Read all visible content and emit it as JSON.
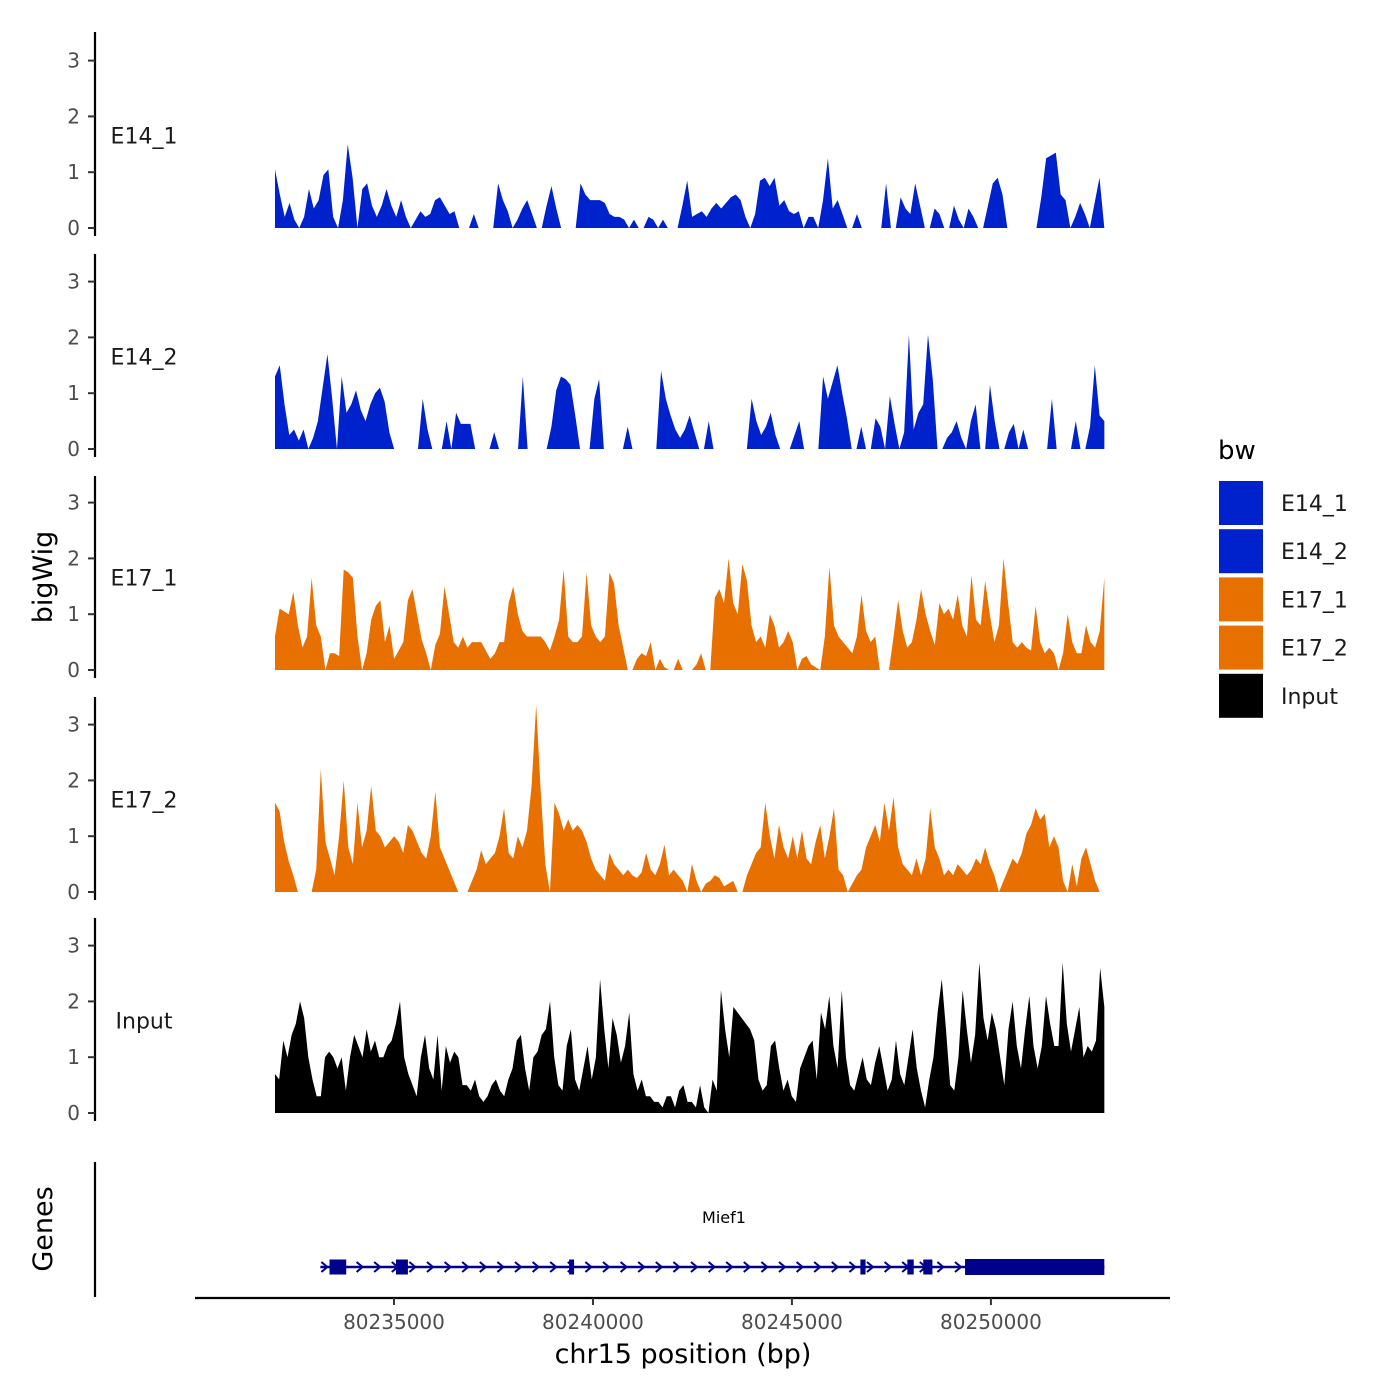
{
  "chart_data": {
    "type": "area",
    "title": "",
    "ylabel": "bigWig",
    "genes_label": "Genes",
    "xlabel": "chr15 position (bp)",
    "xlim": [
      80230000,
      80254500
    ],
    "data_range": [
      80232010,
      80252850
    ],
    "ylim": [
      0,
      3.5
    ],
    "yticks": [
      "0",
      "1",
      "2",
      "3"
    ],
    "xticks": [
      {
        "value": 80235000,
        "label": "80235000"
      },
      {
        "value": 80240000,
        "label": "80240000"
      },
      {
        "value": 80245000,
        "label": "80245000"
      },
      {
        "value": 80250000,
        "label": "80250000"
      }
    ],
    "colors": {
      "E14_1": "#0022cc",
      "E14_2": "#0022cc",
      "E17_1": "#e87000",
      "E17_2": "#e87000",
      "Input": "#000000",
      "gene": "#00008b"
    },
    "legend": {
      "title": "bw",
      "position": "right",
      "entries": [
        "E14_1",
        "E14_2",
        "E17_1",
        "E17_2",
        "Input"
      ]
    },
    "series": [
      {
        "name": "E14_1",
        "label": "E14_1",
        "values": [
          1.05,
          0.6,
          0.2,
          0.45,
          0.15,
          0.0,
          0.2,
          0.7,
          0.35,
          0.5,
          0.95,
          1.05,
          0.2,
          0.0,
          0.5,
          1.5,
          0.9,
          0.0,
          0.7,
          0.8,
          0.4,
          0.2,
          0.4,
          0.7,
          0.4,
          0.2,
          0.5,
          0.2,
          0.0,
          0.15,
          0.3,
          0.2,
          0.25,
          0.5,
          0.55,
          0.4,
          0.25,
          0.3,
          0.0,
          0.0,
          0.0,
          0.25,
          0.0,
          0.0,
          0.0,
          0.0,
          0.8,
          0.5,
          0.3,
          0.0,
          0.15,
          0.35,
          0.5,
          0.25,
          0.0,
          0.0,
          0.4,
          0.75,
          0.35,
          0.0,
          0.0,
          0.0,
          0.0,
          0.8,
          0.6,
          0.5,
          0.5,
          0.5,
          0.45,
          0.25,
          0.2,
          0.2,
          0.15,
          0.0,
          0.15,
          0.0,
          0.0,
          0.2,
          0.15,
          0.0,
          0.15,
          0.0,
          0.0,
          0.0,
          0.4,
          0.85,
          0.2,
          0.25,
          0.3,
          0.2,
          0.35,
          0.45,
          0.35,
          0.45,
          0.55,
          0.6,
          0.5,
          0.2,
          0.0,
          0.25,
          0.85,
          0.9,
          0.75,
          0.9,
          0.4,
          0.5,
          0.3,
          0.25,
          0.3,
          0.0,
          0.2,
          0.2,
          0.0,
          0.5,
          1.25,
          0.35,
          0.5,
          0.25,
          0.0,
          0.0,
          0.25,
          0.0,
          0.0,
          0.0,
          0.0,
          0.0,
          0.8,
          0.0,
          0.0,
          0.55,
          0.35,
          0.25,
          0.8,
          0.4,
          0.0,
          0.0,
          0.35,
          0.25,
          0.0,
          0.0,
          0.4,
          0.15,
          0.0,
          0.35,
          0.2,
          0.0,
          0.0,
          0.4,
          0.8,
          0.9,
          0.6,
          0.0,
          0.0,
          0.0,
          0.0,
          0.0,
          0.0,
          0.0,
          0.55,
          1.25,
          1.3,
          1.35,
          0.6,
          0.5,
          0.0,
          0.2,
          0.45,
          0.25,
          0.0,
          0.45,
          0.9,
          0.0
        ]
      },
      {
        "name": "E14_2",
        "label": "E14_2",
        "values": [
          1.3,
          1.5,
          0.8,
          0.25,
          0.35,
          0.15,
          0.35,
          0.0,
          0.2,
          0.5,
          1.1,
          1.7,
          0.9,
          0.0,
          1.3,
          0.65,
          0.8,
          1.05,
          0.7,
          0.5,
          0.8,
          1.0,
          1.1,
          0.85,
          0.3,
          0.0,
          0.0,
          0.0,
          0.0,
          0.0,
          0.0,
          0.9,
          0.35,
          0.0,
          0.0,
          0.0,
          0.5,
          0.0,
          0.65,
          0.45,
          0.45,
          0.45,
          0.0,
          0.0,
          0.0,
          0.0,
          0.3,
          0.0,
          0.0,
          0.0,
          0.0,
          0.0,
          1.3,
          0.0,
          0.0,
          0.0,
          0.0,
          0.0,
          0.4,
          1.05,
          1.3,
          1.25,
          1.15,
          0.6,
          0.0,
          0.0,
          0.0,
          0.9,
          1.25,
          0.0,
          0.0,
          0.0,
          0.0,
          0.0,
          0.4,
          0.0,
          0.0,
          0.0,
          0.0,
          0.0,
          0.0,
          1.4,
          0.9,
          0.6,
          0.35,
          0.2,
          0.35,
          0.6,
          0.3,
          0.0,
          0.0,
          0.5,
          0.0,
          0.0,
          0.0,
          0.0,
          0.0,
          0.0,
          0.0,
          0.0,
          0.9,
          0.5,
          0.25,
          0.4,
          0.65,
          0.25,
          0.0,
          0.0,
          0.0,
          0.25,
          0.5,
          0.0,
          0.0,
          0.0,
          0.0,
          1.3,
          0.9,
          1.2,
          1.5,
          1.0,
          0.55,
          0.0,
          0.0,
          0.4,
          0.0,
          0.0,
          0.55,
          0.4,
          0.0,
          0.95,
          0.45,
          0.0,
          0.3,
          2.05,
          0.35,
          0.65,
          0.8,
          2.05,
          1.25,
          0.0,
          0.0,
          0.2,
          0.3,
          0.5,
          0.2,
          0.0,
          0.5,
          0.8,
          0.0,
          0.0,
          1.15,
          0.5,
          0.0,
          0.0,
          0.3,
          0.45,
          0.0,
          0.35,
          0.0,
          0.0,
          0.0,
          0.0,
          0.0,
          0.9,
          0.0,
          0.0,
          0.0,
          0.0,
          0.5,
          0.0,
          0.0,
          0.4,
          1.5,
          0.6,
          0.5
        ]
      },
      {
        "name": "E17_1",
        "label": "E17_1",
        "values": [
          0.6,
          1.1,
          1.05,
          1.0,
          1.4,
          0.8,
          0.4,
          0.6,
          1.65,
          0.8,
          0.6,
          0.0,
          0.3,
          0.3,
          0.25,
          1.8,
          1.75,
          1.65,
          0.6,
          0.0,
          0.3,
          0.9,
          1.15,
          1.25,
          0.5,
          0.8,
          0.2,
          0.35,
          0.5,
          1.25,
          1.45,
          1.0,
          0.55,
          0.3,
          0.0,
          0.45,
          0.65,
          1.5,
          1.0,
          0.5,
          0.4,
          0.6,
          0.4,
          0.5,
          0.5,
          0.5,
          0.35,
          0.2,
          0.3,
          0.5,
          0.5,
          1.2,
          1.5,
          1.0,
          0.7,
          0.6,
          0.6,
          0.6,
          0.6,
          0.5,
          0.35,
          0.6,
          0.9,
          1.8,
          0.6,
          0.5,
          0.5,
          0.6,
          1.75,
          0.8,
          0.6,
          0.5,
          0.6,
          1.75,
          1.55,
          0.8,
          0.4,
          0.0,
          0.0,
          0.2,
          0.3,
          0.25,
          0.5,
          0.0,
          0.2,
          0.05,
          0.0,
          0.0,
          0.2,
          0.0,
          0.0,
          0.0,
          0.1,
          0.3,
          0.0,
          0.0,
          1.3,
          1.45,
          1.2,
          2.0,
          1.2,
          1.0,
          1.9,
          1.6,
          0.8,
          0.5,
          0.6,
          0.4,
          1.0,
          0.8,
          0.4,
          0.5,
          0.7,
          0.5,
          0.0,
          0.2,
          0.25,
          0.1,
          0.05,
          0.0,
          0.6,
          1.85,
          0.8,
          0.6,
          0.5,
          0.4,
          0.3,
          0.6,
          1.35,
          0.7,
          0.5,
          0.6,
          0.0,
          0.0,
          0.0,
          0.6,
          1.25,
          0.7,
          0.4,
          0.5,
          0.9,
          1.45,
          1.0,
          0.7,
          0.45,
          1.2,
          1.0,
          1.1,
          0.9,
          1.35,
          0.8,
          0.6,
          1.7,
          0.9,
          0.8,
          1.6,
          1.0,
          0.5,
          0.8,
          2.0,
          1.2,
          0.5,
          0.4,
          0.5,
          0.4,
          0.35,
          1.15,
          0.5,
          0.3,
          0.4,
          0.3,
          0.0,
          0.3,
          1.0,
          0.5,
          0.3,
          0.3,
          0.8,
          0.5,
          0.4,
          0.7,
          1.65
        ]
      },
      {
        "name": "E17_2",
        "label": "E17_2",
        "values": [
          1.6,
          1.45,
          0.9,
          0.55,
          0.3,
          0.0,
          0.0,
          0.0,
          0.0,
          0.4,
          2.2,
          0.9,
          0.6,
          0.3,
          1.0,
          2.0,
          0.8,
          0.5,
          1.6,
          0.8,
          1.1,
          1.9,
          1.1,
          1.0,
          0.8,
          0.9,
          1.0,
          0.9,
          0.7,
          1.2,
          1.1,
          0.9,
          0.7,
          0.6,
          1.0,
          1.8,
          0.8,
          0.6,
          0.4,
          0.2,
          0.0,
          0.0,
          0.0,
          0.2,
          0.4,
          0.75,
          0.5,
          0.6,
          0.7,
          1.0,
          1.5,
          0.7,
          0.6,
          1.0,
          0.8,
          1.1,
          1.9,
          3.35,
          1.8,
          0.5,
          0.0,
          1.6,
          1.4,
          1.1,
          1.3,
          1.1,
          1.2,
          1.1,
          0.9,
          0.6,
          0.4,
          0.3,
          0.2,
          0.7,
          0.5,
          0.4,
          0.3,
          0.4,
          0.3,
          0.25,
          0.35,
          0.7,
          0.4,
          0.3,
          0.5,
          0.85,
          0.3,
          0.4,
          0.3,
          0.2,
          0.0,
          0.5,
          0.2,
          0.0,
          0.15,
          0.2,
          0.3,
          0.25,
          0.1,
          0.15,
          0.2,
          0.0,
          0.0,
          0.3,
          0.5,
          0.7,
          0.8,
          1.6,
          1.0,
          0.6,
          1.2,
          0.8,
          0.6,
          1.0,
          0.6,
          1.1,
          0.6,
          0.5,
          0.9,
          1.2,
          0.6,
          1.0,
          1.5,
          0.4,
          0.3,
          0.0,
          0.15,
          0.3,
          0.4,
          0.8,
          1.0,
          1.2,
          0.9,
          1.6,
          1.1,
          1.7,
          0.8,
          0.5,
          0.4,
          0.3,
          0.6,
          0.3,
          0.6,
          1.5,
          0.8,
          0.6,
          0.3,
          0.4,
          0.3,
          0.5,
          0.4,
          0.3,
          0.4,
          0.6,
          0.5,
          0.8,
          0.5,
          0.3,
          0.0,
          0.2,
          0.4,
          0.6,
          0.5,
          0.7,
          1.05,
          1.2,
          1.5,
          1.3,
          1.4,
          0.8,
          1.0,
          0.8,
          0.2,
          0.0,
          0.5,
          0.1,
          0.6,
          0.8,
          0.5,
          0.2,
          0.0,
          0.0
        ]
      },
      {
        "name": "Input",
        "label": "Input",
        "values": [
          0.7,
          0.6,
          1.3,
          1.0,
          1.4,
          1.6,
          2.0,
          1.7,
          1.0,
          0.6,
          0.3,
          0.3,
          1.0,
          1.1,
          1.0,
          0.8,
          1.0,
          0.4,
          1.0,
          1.4,
          1.2,
          1.0,
          1.5,
          1.1,
          1.3,
          1.0,
          1.0,
          1.2,
          1.3,
          1.6,
          2.0,
          1.0,
          0.7,
          0.5,
          0.3,
          1.0,
          1.4,
          0.8,
          0.6,
          1.4,
          0.4,
          1.2,
          0.9,
          1.1,
          1.0,
          0.5,
          0.5,
          0.4,
          0.6,
          0.3,
          0.2,
          0.3,
          0.5,
          0.6,
          0.4,
          0.3,
          0.6,
          0.8,
          1.3,
          1.4,
          0.8,
          0.4,
          1.0,
          1.1,
          1.4,
          1.5,
          2.0,
          1.0,
          0.5,
          0.4,
          1.2,
          1.5,
          0.6,
          0.4,
          0.8,
          1.2,
          0.6,
          1.0,
          2.4,
          1.5,
          0.8,
          1.7,
          1.4,
          0.9,
          1.2,
          1.8,
          0.7,
          0.4,
          0.6,
          0.3,
          0.3,
          0.2,
          0.2,
          0.1,
          0.3,
          0.3,
          0.1,
          0.4,
          0.5,
          0.2,
          0.2,
          0.1,
          0.5,
          0.1,
          0.0,
          0.6,
          0.4,
          2.2,
          1.5,
          1.0,
          1.9,
          1.8,
          1.7,
          1.6,
          1.5,
          1.3,
          0.6,
          0.4,
          0.5,
          1.2,
          1.3,
          0.8,
          0.4,
          0.6,
          0.3,
          0.2,
          0.8,
          1.0,
          1.2,
          1.3,
          0.6,
          1.8,
          1.5,
          2.1,
          1.2,
          0.8,
          2.2,
          1.0,
          0.5,
          0.4,
          0.7,
          1.0,
          0.6,
          0.5,
          0.9,
          1.2,
          0.8,
          0.4,
          0.6,
          1.3,
          0.7,
          0.5,
          1.0,
          1.5,
          0.8,
          0.4,
          0.1,
          0.6,
          1.0,
          1.8,
          2.4,
          1.5,
          0.5,
          0.4,
          1.0,
          2.2,
          1.5,
          0.9,
          1.4,
          2.7,
          1.7,
          1.3,
          1.8,
          1.5,
          1.0,
          0.5,
          1.5,
          2.0,
          1.2,
          0.8,
          1.5,
          2.1,
          1.2,
          0.8,
          1.2,
          2.1,
          1.6,
          1.2,
          1.2,
          2.7,
          1.6,
          1.1,
          1.5,
          1.9,
          1.0,
          1.2,
          1.1,
          1.3,
          2.6,
          1.9
        ]
      }
    ],
    "gene": {
      "name": "Mief1",
      "start": 80233150,
      "end": 80252850,
      "strand": "+",
      "exons": [
        {
          "start": 80233380,
          "end": 80233800
        },
        {
          "start": 80235050,
          "end": 80235350
        },
        {
          "start": 80239400,
          "end": 80239480
        },
        {
          "start": 80246720,
          "end": 80246850
        },
        {
          "start": 80247900,
          "end": 80248060
        },
        {
          "start": 80248300,
          "end": 80248530
        },
        {
          "start": 80249350,
          "end": 80252850
        }
      ]
    }
  }
}
